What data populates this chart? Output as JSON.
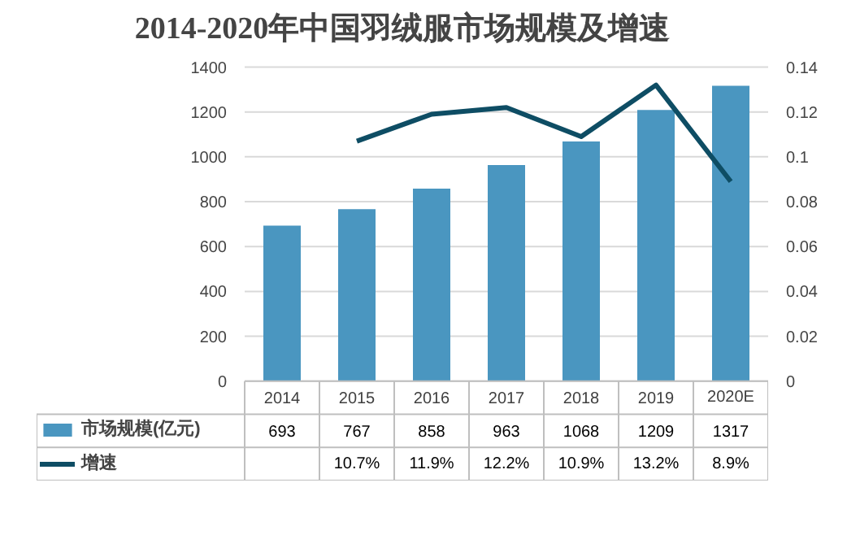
{
  "chart_data": {
    "type": "bar",
    "title": "2014-2020年中国羽绒服市场规模及增速",
    "categories": [
      "2014",
      "2015",
      "2016",
      "2017",
      "2018",
      "2019",
      "2020E"
    ],
    "series": [
      {
        "name": "市场规模(亿元)",
        "color": "#4a96c0",
        "values": [
          693,
          767,
          858,
          963,
          1068,
          1209,
          1317
        ],
        "value_labels": [
          "693",
          "767",
          "858",
          "963",
          "1068",
          "1209",
          "1317"
        ]
      },
      {
        "name": "增速",
        "type": "line",
        "axis": "y2",
        "color": "#0e4d64",
        "values": [
          null,
          0.107,
          0.119,
          0.122,
          0.109,
          0.132,
          0.089
        ],
        "value_labels": [
          null,
          "10.7%",
          "11.9%",
          "12.2%",
          "10.9%",
          "13.2%",
          "8.9%"
        ]
      }
    ],
    "ylim": [
      0,
      1400
    ],
    "yticks": [
      0,
      200,
      400,
      600,
      800,
      1000,
      1200,
      1400
    ],
    "y2lim": [
      0,
      0.14
    ],
    "y2ticks": [
      0,
      0.02,
      0.04,
      0.06,
      0.08,
      0.1,
      0.12,
      0.14
    ],
    "grid": "y",
    "legend": "bottom",
    "marker": "none",
    "line_style": "solid"
  }
}
